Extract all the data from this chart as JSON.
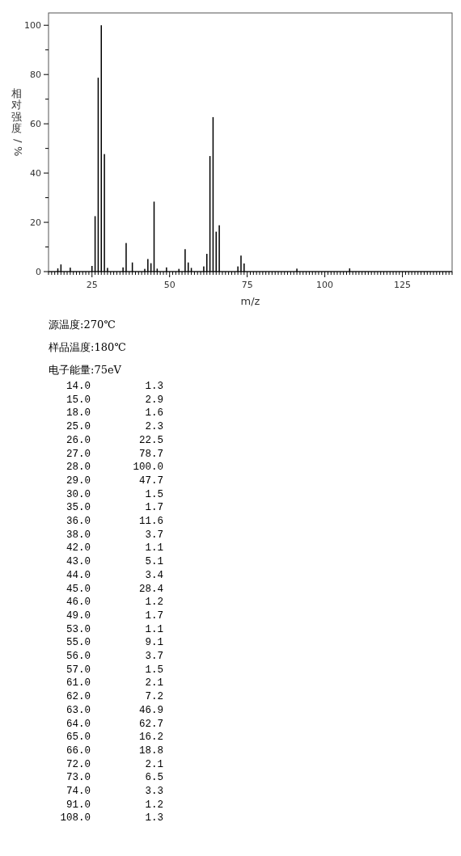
{
  "chart_data": [
    {
      "type": "bar",
      "xlabel": "m/z",
      "ylabel": "相对强度/%",
      "x": [
        14,
        15,
        18,
        25,
        26,
        27,
        28,
        29,
        30,
        35,
        36,
        38,
        42,
        43,
        44,
        45,
        46,
        49,
        53,
        55,
        56,
        57,
        61,
        62,
        63,
        64,
        65,
        66,
        72,
        73,
        74,
        91,
        108
      ],
      "values": [
        1.3,
        2.9,
        1.6,
        2.3,
        22.5,
        78.7,
        100.0,
        47.7,
        1.5,
        1.7,
        11.6,
        3.7,
        1.1,
        5.1,
        3.4,
        28.4,
        1.2,
        1.7,
        1.1,
        9.1,
        3.7,
        1.5,
        2.1,
        7.2,
        46.9,
        62.7,
        16.2,
        18.8,
        2.1,
        6.5,
        3.3,
        1.2,
        1.3
      ],
      "color": "#000000",
      "xlim": [
        11,
        141
      ],
      "xticks": [
        {
          "value": 11,
          "label": null
        },
        {
          "value": 12,
          "label": null
        },
        {
          "value": 13,
          "label": null
        },
        {
          "value": 14,
          "label": null
        },
        {
          "value": 15,
          "label": null
        },
        {
          "value": 16,
          "label": null
        },
        {
          "value": 17,
          "label": null
        },
        {
          "value": 18,
          "label": null
        },
        {
          "value": 19,
          "label": null
        },
        {
          "value": 20,
          "label": null
        },
        {
          "value": 21,
          "label": null
        },
        {
          "value": 22,
          "label": null
        },
        {
          "value": 23,
          "label": null
        },
        {
          "value": 24,
          "label": null
        },
        25,
        {
          "value": 26,
          "label": null
        },
        {
          "value": 27,
          "label": null
        },
        {
          "value": 28,
          "label": null
        },
        {
          "value": 29,
          "label": null
        },
        {
          "value": 30,
          "label": null
        },
        {
          "value": 31,
          "label": null
        },
        {
          "value": 32,
          "label": null
        },
        {
          "value": 33,
          "label": null
        },
        {
          "value": 34,
          "label": null
        },
        {
          "value": 35,
          "label": null
        },
        {
          "value": 36,
          "label": null
        },
        {
          "value": 37,
          "label": null
        },
        {
          "value": 38,
          "label": null
        },
        {
          "value": 39,
          "label": null
        },
        {
          "value": 40,
          "label": null
        },
        {
          "value": 41,
          "label": null
        },
        {
          "value": 42,
          "label": null
        },
        {
          "value": 43,
          "label": null
        },
        {
          "value": 44,
          "label": null
        },
        {
          "value": 45,
          "label": null
        },
        {
          "value": 46,
          "label": null
        },
        {
          "value": 47,
          "label": null
        },
        {
          "value": 48,
          "label": null
        },
        {
          "value": 49,
          "label": null
        },
        50,
        {
          "value": 51,
          "label": null
        },
        {
          "value": 52,
          "label": null
        },
        {
          "value": 53,
          "label": null
        },
        {
          "value": 54,
          "label": null
        },
        {
          "value": 55,
          "label": null
        },
        {
          "value": 56,
          "label": null
        },
        {
          "value": 57,
          "label": null
        },
        {
          "value": 58,
          "label": null
        },
        {
          "value": 59,
          "label": null
        },
        {
          "value": 60,
          "label": null
        },
        {
          "value": 61,
          "label": null
        },
        {
          "value": 62,
          "label": null
        },
        {
          "value": 63,
          "label": null
        },
        {
          "value": 64,
          "label": null
        },
        {
          "value": 65,
          "label": null
        },
        {
          "value": 66,
          "label": null
        },
        {
          "value": 67,
          "label": null
        },
        {
          "value": 68,
          "label": null
        },
        {
          "value": 69,
          "label": null
        },
        {
          "value": 70,
          "label": null
        },
        {
          "value": 71,
          "label": null
        },
        {
          "value": 72,
          "label": null
        },
        {
          "value": 73,
          "label": null
        },
        {
          "value": 74,
          "label": null
        },
        75,
        {
          "value": 76,
          "label": null
        },
        {
          "value": 77,
          "label": null
        },
        {
          "value": 78,
          "label": null
        },
        {
          "value": 79,
          "label": null
        },
        {
          "value": 80,
          "label": null
        },
        {
          "value": 81,
          "label": null
        },
        {
          "value": 82,
          "label": null
        },
        {
          "value": 83,
          "label": null
        },
        {
          "value": 84,
          "label": null
        },
        {
          "value": 85,
          "label": null
        },
        {
          "value": 86,
          "label": null
        },
        {
          "value": 87,
          "label": null
        },
        {
          "value": 88,
          "label": null
        },
        {
          "value": 89,
          "label": null
        },
        {
          "value": 90,
          "label": null
        },
        {
          "value": 91,
          "label": null
        },
        {
          "value": 92,
          "label": null
        },
        {
          "value": 93,
          "label": null
        },
        {
          "value": 94,
          "label": null
        },
        {
          "value": 95,
          "label": null
        },
        {
          "value": 96,
          "label": null
        },
        {
          "value": 97,
          "label": null
        },
        {
          "value": 98,
          "label": null
        },
        {
          "value": 99,
          "label": null
        },
        100,
        {
          "value": 101,
          "label": null
        },
        {
          "value": 102,
          "label": null
        },
        {
          "value": 103,
          "label": null
        },
        {
          "value": 104,
          "label": null
        },
        {
          "value": 105,
          "label": null
        },
        {
          "value": 106,
          "label": null
        },
        {
          "value": 107,
          "label": null
        },
        {
          "value": 108,
          "label": null
        },
        {
          "value": 109,
          "label": null
        },
        {
          "value": 110,
          "label": null
        },
        {
          "value": 111,
          "label": null
        },
        {
          "value": 112,
          "label": null
        },
        {
          "value": 113,
          "label": null
        },
        {
          "value": 114,
          "label": null
        },
        {
          "value": 115,
          "label": null
        },
        {
          "value": 116,
          "label": null
        },
        {
          "value": 117,
          "label": null
        },
        {
          "value": 118,
          "label": null
        },
        {
          "value": 119,
          "label": null
        },
        {
          "value": 120,
          "label": null
        },
        {
          "value": 121,
          "label": null
        },
        {
          "value": 122,
          "label": null
        },
        {
          "value": 123,
          "label": null
        },
        {
          "value": 124,
          "label": null
        },
        125,
        {
          "value": 126,
          "label": null
        },
        {
          "value": 127,
          "label": null
        },
        {
          "value": 128,
          "label": null
        },
        {
          "value": 129,
          "label": null
        },
        {
          "value": 130,
          "label": null
        },
        {
          "value": 131,
          "label": null
        },
        {
          "value": 132,
          "label": null
        },
        {
          "value": 133,
          "label": null
        },
        {
          "value": 134,
          "label": null
        },
        {
          "value": 135,
          "label": null
        },
        {
          "value": 136,
          "label": null
        },
        {
          "value": 137,
          "label": null
        },
        {
          "value": 138,
          "label": null
        },
        {
          "value": 139,
          "label": null
        },
        {
          "value": 140,
          "label": null
        },
        {
          "value": 141,
          "label": null
        }
      ],
      "ylim": [
        0,
        105
      ],
      "yticks": [
        0,
        {
          "value": 10,
          "label": null
        },
        20,
        {
          "value": 30,
          "label": null
        },
        40,
        {
          "value": 50,
          "label": null
        },
        60,
        {
          "value": 70,
          "label": null
        },
        80,
        {
          "value": 90,
          "label": null
        },
        100
      ],
      "annotations": [
        "源温度:270℃",
        "样品温度:180℃",
        "电子能量:75eV"
      ]
    },
    {
      "type": "other",
      "annotations": [
        "14.0",
        "1.3",
        "15.0",
        "2.9",
        "18.0",
        "1.6",
        "25.0",
        "2.3",
        "26.0",
        "22.5",
        "27.0",
        "78.7",
        "28.0",
        "100.0",
        "29.0",
        "47.7",
        "30.0",
        "1.5",
        "35.0",
        "1.7",
        "36.0",
        "11.6",
        "38.0",
        "3.7",
        "42.0",
        "1.1",
        "43.0",
        "5.1",
        "44.0",
        "3.4",
        "45.0",
        "28.4",
        "46.0",
        "1.2",
        "49.0",
        "1.7",
        "53.0",
        "1.1",
        "55.0",
        "9.1",
        "56.0",
        "3.7",
        "57.0",
        "1.5",
        "61.0",
        "2.1",
        "62.0",
        "7.2",
        "63.0",
        "46.9",
        "64.0",
        "62.7",
        "65.0",
        "16.2",
        "66.0",
        "18.8",
        "72.0",
        "2.1",
        "73.0",
        "6.5",
        "74.0",
        "3.3",
        "91.0",
        "1.2",
        "108.0",
        "1.3"
      ]
    }
  ]
}
